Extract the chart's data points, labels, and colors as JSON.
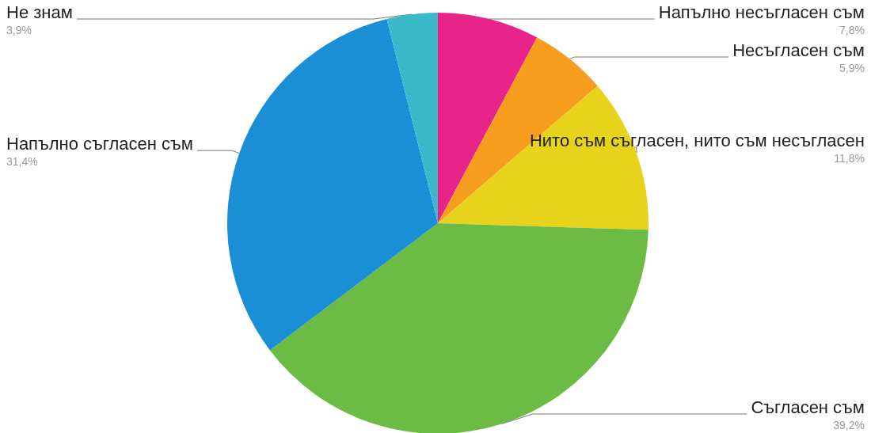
{
  "chart_data": {
    "type": "pie",
    "categories": [
      "Напълно несъгласен съм",
      "Несъгласен съм",
      "Нито съм съгласен, нито съм несъгласен",
      "Съгласен съм",
      "Напълно съгласен съм",
      "Не знам"
    ],
    "values": [
      7.8,
      5.9,
      11.8,
      39.2,
      31.4,
      3.9
    ],
    "value_labels": [
      "7,8%",
      "5,9%",
      "11,8%",
      "39,2%",
      "31,4%",
      "3,9%"
    ],
    "colors": [
      "#e8238a",
      "#f79d1e",
      "#e8d31c",
      "#6bbb45",
      "#1b8fd6",
      "#3cb9c8"
    ],
    "legend": false
  }
}
